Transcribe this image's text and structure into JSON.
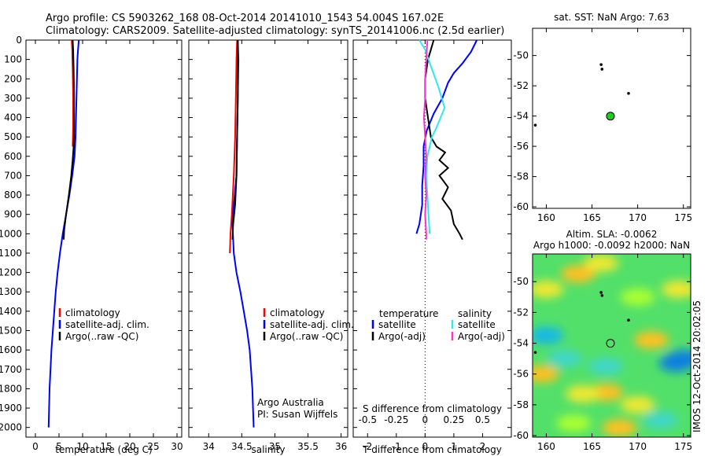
{
  "title": {
    "line1": "Argo profile: CS 5903262_168 08-Oct-2014 20141010_1543 54.004S 167.02E",
    "line2": "Climatology: CARS2009. Satellite-adjusted climatology: synTS_20141006.nc (2.5d earlier)"
  },
  "colors": {
    "climatology": "#ff0000",
    "satellite": "#0000ff",
    "argo": "#000000",
    "sal_sat": "#33e6f0",
    "sal_argo": "#ff33cc",
    "sst_marker": "#22cc22"
  },
  "chart_data": [
    {
      "type": "line",
      "name": "temperature",
      "xlabel": "temperature (deg C)",
      "xlim": [
        -2,
        31
      ],
      "ylim": [
        0,
        2050
      ],
      "xticks": [
        "0",
        "5",
        "10",
        "15",
        "20",
        "25",
        "30"
      ],
      "yticks": [
        "0",
        "100",
        "200",
        "300",
        "400",
        "500",
        "600",
        "700",
        "800",
        "900",
        "1000",
        "1100",
        "1200",
        "1300",
        "1400",
        "1500",
        "1600",
        "1700",
        "1800",
        "1900",
        "2000"
      ],
      "legend": [
        "climatology",
        "satellite-adj. clim.",
        "Argo(..raw -QC)"
      ],
      "series": [
        {
          "name": "climatology",
          "color": "#ff0000",
          "points": [
            [
              7.7,
              0
            ],
            [
              7.8,
              50
            ],
            [
              7.9,
              150
            ],
            [
              8.0,
              300
            ],
            [
              8.0,
              450
            ],
            [
              7.9,
              550
            ]
          ]
        },
        {
          "name": "satellite-adj. clim.",
          "color": "#0000ff",
          "points": [
            [
              9.2,
              0
            ],
            [
              9.0,
              60
            ],
            [
              8.9,
              100
            ],
            [
              8.8,
              200
            ],
            [
              8.7,
              300
            ],
            [
              8.6,
              400
            ],
            [
              8.5,
              500
            ],
            [
              8.3,
              600
            ],
            [
              7.8,
              700
            ],
            [
              7.2,
              800
            ],
            [
              6.5,
              900
            ],
            [
              5.8,
              1000
            ],
            [
              5.2,
              1100
            ],
            [
              4.7,
              1200
            ],
            [
              4.3,
              1300
            ],
            [
              4.0,
              1400
            ],
            [
              3.7,
              1500
            ],
            [
              3.4,
              1600
            ],
            [
              3.2,
              1700
            ],
            [
              3.0,
              1800
            ],
            [
              2.9,
              1900
            ],
            [
              2.8,
              2000
            ]
          ]
        },
        {
          "name": "Argo(..raw -QC)",
          "color": "#000000",
          "points": [
            [
              7.9,
              0
            ],
            [
              8.0,
              50
            ],
            [
              8.1,
              150
            ],
            [
              8.2,
              300
            ],
            [
              8.2,
              450
            ],
            [
              8.1,
              550
            ],
            [
              7.9,
              620
            ],
            [
              7.6,
              700
            ],
            [
              7.2,
              780
            ],
            [
              6.8,
              850
            ],
            [
              6.4,
              920
            ],
            [
              6.1,
              980
            ],
            [
              6.0,
              1030
            ]
          ]
        }
      ]
    },
    {
      "type": "line",
      "name": "salinity",
      "xlabel": "salinity",
      "xlim": [
        33.7,
        36.1
      ],
      "ylim": [
        0,
        2050
      ],
      "xticks": [
        "34",
        "34.5",
        "35",
        "35.5",
        "36"
      ],
      "legend": [
        "climatology",
        "satellite-adj. clim.",
        "Argo(..raw -QC)"
      ],
      "annotation": [
        "Argo Australia",
        "PI: Susan Wijffels"
      ],
      "series": [
        {
          "name": "climatology",
          "color": "#ff0000",
          "points": [
            [
              34.43,
              0
            ],
            [
              34.42,
              100
            ],
            [
              34.41,
              300
            ],
            [
              34.4,
              500
            ],
            [
              34.38,
              700
            ],
            [
              34.35,
              900
            ],
            [
              34.33,
              1000
            ],
            [
              34.32,
              1100
            ]
          ]
        },
        {
          "name": "satellite-adj. clim.",
          "color": "#0000ff",
          "points": [
            [
              34.44,
              0
            ],
            [
              34.45,
              100
            ],
            [
              34.44,
              300
            ],
            [
              34.43,
              500
            ],
            [
              34.42,
              700
            ],
            [
              34.38,
              850
            ],
            [
              34.36,
              950
            ],
            [
              34.38,
              1100
            ],
            [
              34.42,
              1200
            ],
            [
              34.48,
              1300
            ],
            [
              34.53,
              1400
            ],
            [
              34.58,
              1500
            ],
            [
              34.62,
              1600
            ],
            [
              34.64,
              1700
            ],
            [
              34.66,
              1800
            ],
            [
              34.67,
              1900
            ],
            [
              34.68,
              2000
            ]
          ]
        },
        {
          "name": "Argo(..raw -QC)",
          "color": "#000000",
          "points": [
            [
              34.44,
              0
            ],
            [
              34.44,
              100
            ],
            [
              34.44,
              300
            ],
            [
              34.43,
              500
            ],
            [
              34.42,
              700
            ],
            [
              34.4,
              850
            ],
            [
              34.37,
              950
            ],
            [
              34.36,
              1030
            ]
          ]
        }
      ]
    },
    {
      "type": "line",
      "name": "difference",
      "xlabel": "T difference from climatology",
      "xlabel_top": "S difference from climatology",
      "xlim": [
        -2.5,
        3.0
      ],
      "ylim": [
        0,
        2050
      ],
      "xticks_T": [
        "-2",
        "-1",
        "0",
        "1",
        "2"
      ],
      "xticks_S": [
        "-0.5",
        "-0.25",
        "0",
        "0.25",
        "0.5"
      ],
      "legend_T": {
        "header": "temperature",
        "items": [
          "satellite",
          "Argo(-adj)"
        ]
      },
      "legend_S": {
        "header": "salinity",
        "items": [
          "satellite",
          "Argo(-adj)"
        ]
      },
      "series": [
        {
          "name": "T satellite",
          "color": "#0000ff",
          "points": [
            [
              1.8,
              0
            ],
            [
              1.6,
              60
            ],
            [
              1.3,
              120
            ],
            [
              1.0,
              170
            ],
            [
              0.8,
              220
            ],
            [
              0.6,
              300
            ],
            [
              0.3,
              380
            ],
            [
              0.05,
              470
            ],
            [
              -0.05,
              550
            ],
            [
              -0.05,
              650
            ],
            [
              -0.1,
              750
            ],
            [
              -0.1,
              850
            ],
            [
              -0.2,
              950
            ],
            [
              -0.3,
              1000
            ]
          ]
        },
        {
          "name": "T Argo(-adj)",
          "color": "#000000",
          "points": [
            [
              0.3,
              0
            ],
            [
              0.2,
              50
            ],
            [
              0.1,
              100
            ],
            [
              0.0,
              200
            ],
            [
              0.0,
              300
            ],
            [
              0.1,
              400
            ],
            [
              0.2,
              500
            ],
            [
              0.4,
              550
            ],
            [
              0.7,
              580
            ],
            [
              0.5,
              620
            ],
            [
              0.8,
              660
            ],
            [
              0.5,
              700
            ],
            [
              0.8,
              760
            ],
            [
              0.6,
              820
            ],
            [
              0.9,
              880
            ],
            [
              1.0,
              950
            ],
            [
              1.2,
              1000
            ],
            [
              1.3,
              1030
            ]
          ]
        },
        {
          "name": "S satellite",
          "color": "#33e6f0",
          "points": [
            [
              -0.05,
              0
            ],
            [
              0.0,
              50
            ],
            [
              0.06,
              150
            ],
            [
              0.12,
              250
            ],
            [
              0.17,
              350
            ],
            [
              0.1,
              450
            ],
            [
              0.06,
              500
            ],
            [
              0.02,
              600
            ],
            [
              0.01,
              700
            ],
            [
              0.02,
              800
            ],
            [
              0.03,
              900
            ],
            [
              0.04,
              1000
            ]
          ]
        },
        {
          "name": "S Argo(-adj)",
          "color": "#ff33cc",
          "points": [
            [
              0.02,
              0
            ],
            [
              0.01,
              100
            ],
            [
              0.0,
              200
            ],
            [
              0.0,
              300
            ],
            [
              -0.01,
              400
            ],
            [
              0.0,
              500
            ],
            [
              0.01,
              600
            ],
            [
              0.0,
              700
            ],
            [
              0.01,
              800
            ],
            [
              0.0,
              900
            ],
            [
              0.01,
              1000
            ],
            [
              0.01,
              1030
            ]
          ]
        }
      ]
    },
    {
      "type": "scatter",
      "name": "sst-map",
      "title": "sat. SST: NaN Argo: 7.63",
      "xlim": [
        158.5,
        175.8
      ],
      "ylim": [
        -60.1,
        -48.2
      ],
      "xticks": [
        "160",
        "165",
        "170",
        "175"
      ],
      "yticks": [
        "-50",
        "-52",
        "-54",
        "-56",
        "-58",
        "-60"
      ],
      "points": [
        [
          166.0,
          -50.6
        ],
        [
          166.1,
          -50.9
        ],
        [
          169.0,
          -52.5
        ],
        [
          158.8,
          -54.6
        ]
      ],
      "argo_position": [
        167.02,
        -54.004
      ]
    },
    {
      "type": "heatmap",
      "name": "sla-map",
      "title_line1": "Altim. SLA: -0.0062",
      "title_line2": "Argo h1000: -0.0092 h2000: NaN",
      "xlim": [
        158.5,
        175.8
      ],
      "ylim": [
        -60.1,
        -48.2
      ],
      "xticks": [
        "160",
        "165",
        "170",
        "175"
      ],
      "yticks": [
        "-50",
        "-52",
        "-54",
        "-56",
        "-58",
        "-60"
      ],
      "points": [
        [
          166.0,
          -50.7
        ],
        [
          166.1,
          -50.9
        ],
        [
          169.0,
          -52.5
        ],
        [
          158.8,
          -54.6
        ]
      ],
      "argo_position": [
        167.02,
        -54.004
      ],
      "sla_colormap": [
        "#0a7fe0",
        "#19b8e6",
        "#3fd6c8",
        "#6cf07a",
        "#33dd44",
        "#aaff33",
        "#f0e830",
        "#ffc020"
      ],
      "sla_blobs": [
        {
          "lon": 160.0,
          "lat": -50.5,
          "level": 6
        },
        {
          "lon": 163.5,
          "lat": -49.5,
          "level": 7
        },
        {
          "lon": 166.0,
          "lat": -48.8,
          "level": 6
        },
        {
          "lon": 170.0,
          "lat": -51.0,
          "level": 5
        },
        {
          "lon": 174.5,
          "lat": -50.5,
          "level": 6
        },
        {
          "lon": 171.5,
          "lat": -53.8,
          "level": 7
        },
        {
          "lon": 162.0,
          "lat": -55.0,
          "level": 2
        },
        {
          "lon": 160.0,
          "lat": -53.5,
          "level": 1
        },
        {
          "lon": 166.5,
          "lat": -55.5,
          "level": 2
        },
        {
          "lon": 175.0,
          "lat": -55.0,
          "level": 0
        },
        {
          "lon": 174.2,
          "lat": -55.3,
          "level": 0
        },
        {
          "lon": 166.5,
          "lat": -57.2,
          "level": 7
        },
        {
          "lon": 164.0,
          "lat": -57.3,
          "level": 6
        },
        {
          "lon": 159.5,
          "lat": -56.0,
          "level": 7
        },
        {
          "lon": 163.0,
          "lat": -59.2,
          "level": 5
        },
        {
          "lon": 170.0,
          "lat": -58.0,
          "level": 6
        },
        {
          "lon": 172.5,
          "lat": -59.0,
          "level": 2
        },
        {
          "lon": 168.0,
          "lat": -59.5,
          "level": 7
        }
      ]
    }
  ],
  "watermark": "IMOS 12-Oct-2014 20:02:05"
}
